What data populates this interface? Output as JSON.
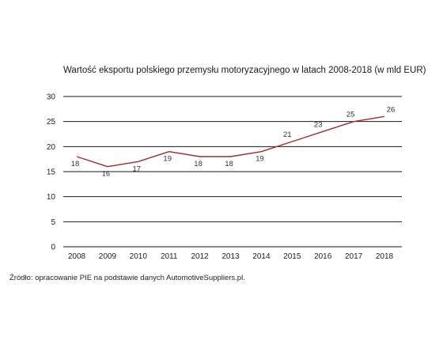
{
  "chart_data": {
    "type": "line",
    "title": "Wartość eksportu polskiego przemysłu motoryzacyjnego w latach 2008-2018 (w mld EUR)",
    "categories": [
      "2008",
      "2009",
      "2010",
      "2011",
      "2012",
      "2013",
      "2014",
      "2015",
      "2016",
      "2017",
      "2018"
    ],
    "series": [
      {
        "values": [
          18,
          16,
          17,
          19,
          18,
          18,
          19,
          21,
          23,
          25,
          26
        ]
      }
    ],
    "data_labels": [
      "18",
      "16",
      "17",
      "19",
      "18",
      "18",
      "19",
      "21",
      "23",
      "25",
      "26"
    ],
    "ylim": [
      0,
      30
    ],
    "yticks": [
      "0",
      "5",
      "10",
      "15",
      "20",
      "25",
      "30"
    ],
    "ytick_values": [
      0,
      5,
      10,
      15,
      20,
      25,
      30
    ],
    "grid": "horizontal",
    "colors": {
      "line": "#a52a2a",
      "grid": "#1a1a1a"
    }
  },
  "source_note": "Źródło: opracowanie PIE na podstawie danych AutomotiveSuppliers.pl."
}
